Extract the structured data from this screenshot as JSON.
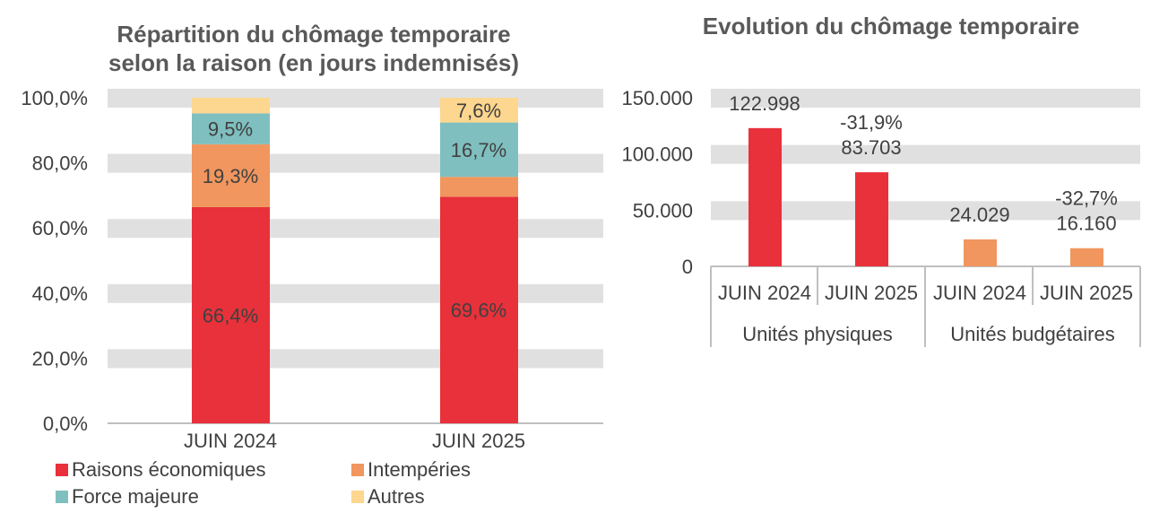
{
  "chart_data": [
    {
      "type": "bar",
      "stacked": true,
      "title": [
        "Répartition du chômage temporaire",
        "selon la raison (en jours indemnisés)"
      ],
      "categories": [
        "JUIN 2024",
        "JUIN 2025"
      ],
      "series": [
        {
          "name": "Raisons économiques",
          "color": "#E8313A",
          "values": [
            66.4,
            69.6
          ],
          "labels": [
            "66,4%",
            "69,6%"
          ]
        },
        {
          "name": "Intempéries",
          "color": "#F0965E",
          "values": [
            19.3,
            6.1
          ],
          "labels": [
            "19,3%",
            ""
          ]
        },
        {
          "name": "Force majeure",
          "color": "#80BFBF",
          "values": [
            9.5,
            16.7
          ],
          "labels": [
            "9,5%",
            "16,7%"
          ]
        },
        {
          "name": "Autres",
          "color": "#FDD68F",
          "values": [
            4.8,
            7.6
          ],
          "labels": [
            "",
            "7,6%"
          ]
        }
      ],
      "ylim": [
        0,
        100
      ],
      "yticks": [
        "0,0%",
        "20,0%",
        "40,0%",
        "60,0%",
        "80,0%",
        "100,0%"
      ],
      "grid": true,
      "legend": "bottom"
    },
    {
      "type": "bar",
      "title": "Evolution du chômage temporaire",
      "groups": [
        "Unités physiques",
        "Unités budgétaires"
      ],
      "categories": [
        "JUIN 2024",
        "JUIN 2025",
        "JUIN 2024",
        "JUIN 2025"
      ],
      "values": [
        122998,
        83703,
        24029,
        16160
      ],
      "value_labels": [
        "122.998",
        "83.703",
        "24.029",
        "16.160"
      ],
      "change_labels": [
        "",
        "-31,9%",
        "",
        "-32,7%"
      ],
      "colors": [
        "#E8313A",
        "#E8313A",
        "#F0965E",
        "#F0965E"
      ],
      "ylim": [
        0,
        150000
      ],
      "yticks": [
        "0",
        "50.000",
        "100.000",
        "150.000"
      ],
      "grid": true
    }
  ]
}
